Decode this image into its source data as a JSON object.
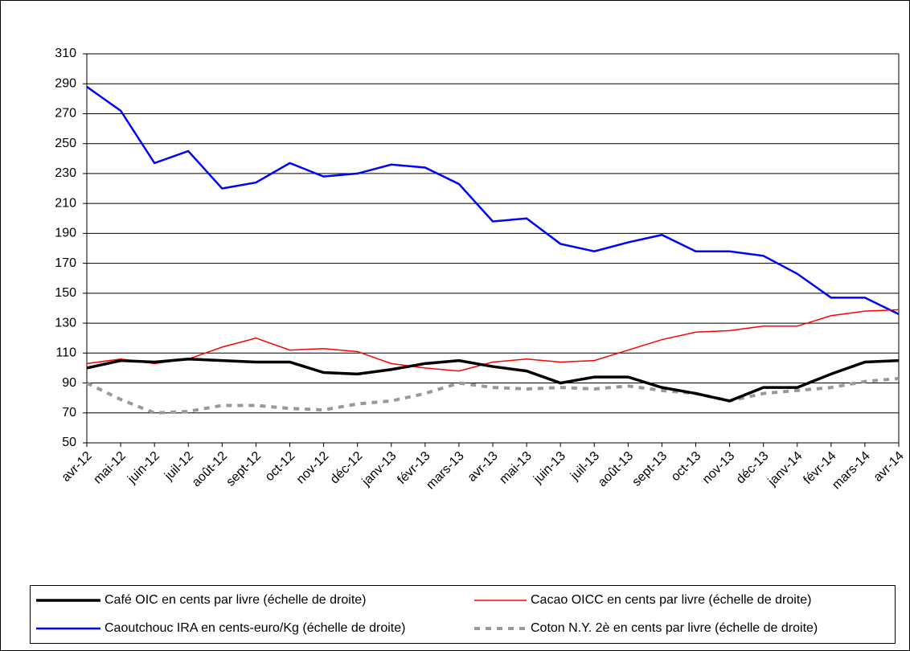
{
  "chart_data": {
    "type": "line",
    "categories": [
      "avr-12",
      "mai-12",
      "juin-12",
      "juil-12",
      "août-12",
      "sept-12",
      "oct-12",
      "nov-12",
      "déc-12",
      "janv-13",
      "févr-13",
      "mars-13",
      "avr-13",
      "mai-13",
      "juin-13",
      "juil-13",
      "août-13",
      "sept-13",
      "oct-13",
      "nov-13",
      "déc-13",
      "janv-14",
      "févr-14",
      "mars-14",
      "avr-14"
    ],
    "series": [
      {
        "name": "Café  OIC en cents par livre (échelle de droite)",
        "color": "#000000",
        "line_width": 3.5,
        "dash": "none",
        "values": [
          100,
          105,
          104,
          106,
          105,
          104,
          104,
          97,
          96,
          99,
          103,
          105,
          101,
          98,
          90,
          94,
          94,
          87,
          83,
          78,
          87,
          87,
          96,
          104,
          105
        ]
      },
      {
        "name": "Cacao OICC en cents par livre (échelle de droite)",
        "color": "#ff0000",
        "line_width": 1.5,
        "dash": "none",
        "values": [
          103,
          106,
          103,
          106,
          114,
          120,
          112,
          113,
          111,
          103,
          100,
          98,
          104,
          106,
          104,
          105,
          112,
          119,
          124,
          125,
          128,
          128,
          135,
          138,
          139
        ]
      },
      {
        "name": "Caoutchouc IRA en cents-euro/Kg (échelle de droite)",
        "color": "#0000ff",
        "line_width": 2.5,
        "dash": "none",
        "values": [
          288,
          272,
          237,
          245,
          220,
          224,
          237,
          228,
          230,
          236,
          234,
          223,
          198,
          200,
          183,
          178,
          184,
          189,
          178,
          178,
          175,
          163,
          147,
          147,
          136
        ]
      },
      {
        "name": "Coton N.Y. 2è en cents par livre (échelle de droite)",
        "color": "#999999",
        "line_width": 4,
        "dash": "7,7",
        "values": [
          90,
          79,
          70,
          71,
          75,
          75,
          73,
          72,
          76,
          78,
          83,
          90,
          87,
          86,
          87,
          86,
          88,
          85,
          83,
          78,
          83,
          85,
          87,
          91,
          93
        ]
      }
    ],
    "ylim": [
      50,
      310
    ],
    "yticks": [
      50,
      70,
      90,
      110,
      130,
      150,
      170,
      190,
      210,
      230,
      250,
      270,
      290,
      310
    ],
    "grid": true
  }
}
